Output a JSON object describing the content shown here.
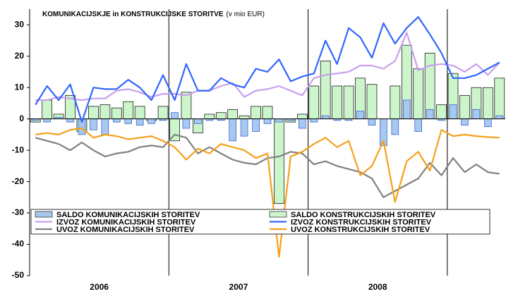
{
  "chart_data": {
    "type": "combo",
    "title": "KOMUNIKACIJSKJE in KONSTRUKCIJSKE STORITVE",
    "title_unit": "(v mio EUR)",
    "categories": [
      null,
      null,
      null,
      null,
      null,
      null,
      null,
      null,
      null,
      null,
      null,
      null,
      null,
      null,
      null,
      null,
      null,
      null,
      null,
      null,
      null,
      null,
      null,
      null,
      null,
      null,
      null,
      null,
      null,
      null,
      null,
      null,
      null,
      null,
      null,
      null,
      null,
      null,
      null,
      null,
      null
    ],
    "year_labels": [
      "2006",
      "2007",
      "2008"
    ],
    "ylim": [
      -50,
      35
    ],
    "yticks": [
      -50,
      -40,
      -30,
      -20,
      -10,
      0,
      10,
      20,
      30
    ],
    "grid": false,
    "series": [
      {
        "name": "SALDO KONSTRUKCIJSKIH STORITEV",
        "kind": "bar",
        "color": "#ccf5cc",
        "values": [
          -1,
          6,
          1.5,
          7.5,
          -4,
          4,
          4.5,
          3.5,
          5.5,
          4,
          -0.5,
          4,
          -7,
          8.5,
          -4.5,
          1.5,
          2,
          3,
          1,
          4,
          4,
          -27,
          -1,
          1.5,
          10.5,
          18.5,
          10.5,
          10.5,
          13,
          11,
          0,
          10.5,
          23.5,
          16,
          21,
          4.5,
          14.5,
          7.5,
          10,
          10,
          13
        ]
      },
      {
        "name": "SALDO KOMUNIKACIJSKIH STORITEV",
        "kind": "bar",
        "color": "#a8c8f0",
        "values": [
          -0.5,
          -1,
          0.5,
          -1,
          -5,
          -3.5,
          -5,
          -1,
          -1.5,
          -2,
          -1.5,
          -0.5,
          2,
          -3,
          -1.5,
          -0.5,
          -0.5,
          -7,
          -5.5,
          -4,
          -1.5,
          -1,
          -0.5,
          -3,
          -1,
          1,
          -0.5,
          -0.5,
          2.5,
          -2,
          -8.5,
          -5,
          6,
          -4,
          3,
          -0.5,
          4.5,
          -2,
          3,
          -2.5,
          1
        ]
      },
      {
        "name": "IZVOZ KOMUNIKACIJSKIH STORITEV",
        "kind": "line",
        "color": "#c8a0ee",
        "values": [
          6,
          6,
          7,
          6.5,
          6,
          6.5,
          6.5,
          9,
          9.5,
          8.5,
          7,
          8,
          8,
          7.5,
          9,
          9,
          10.5,
          11.5,
          7,
          9,
          9.5,
          10.5,
          9,
          7.5,
          13,
          14,
          14.5,
          15,
          17,
          17,
          16,
          18.5,
          27.5,
          15.5,
          17,
          17.5,
          17,
          15,
          17.5,
          14,
          18
        ]
      },
      {
        "name": "IZVOZ KONSTRUKCIJSKIH STORITEV",
        "kind": "line",
        "color": "#3366ff",
        "values": [
          4.5,
          10.5,
          6,
          11,
          -1,
          10,
          9.5,
          9.5,
          12.5,
          10,
          6,
          14,
          6,
          17.5,
          9,
          9,
          13,
          11,
          10,
          16,
          15,
          19,
          12,
          13.5,
          14.5,
          25,
          17.5,
          29,
          26,
          19.5,
          30.5,
          24,
          29,
          32.5,
          27,
          21,
          13,
          13,
          14,
          16,
          18
        ]
      },
      {
        "name": "UVOZ KOMUNIKACIJSKIH STORITEV",
        "kind": "line",
        "color": "#808080",
        "values": [
          -6,
          -7,
          -8,
          -10,
          -7.5,
          -10,
          -12,
          -11,
          -10.5,
          -9,
          -8.5,
          -9,
          -5,
          -6,
          -11,
          -9,
          -11,
          -13,
          -14,
          -14.5,
          -12.5,
          -12,
          -10.5,
          -11,
          -14.5,
          -13.5,
          -15,
          -16,
          -17,
          -19,
          -25,
          -23,
          -21,
          -19,
          -14,
          -18,
          -12.5,
          -17,
          -14.5,
          -17,
          -17.5
        ]
      },
      {
        "name": "UVOZ KONSTRUKCIJSKIH STORITEV",
        "kind": "line",
        "color": "#f5a01a",
        "values": [
          -5,
          -4.5,
          -5,
          -3.5,
          -3,
          -6,
          -5,
          -5.5,
          -6.5,
          -6,
          -5.5,
          -7,
          -9,
          -13,
          -9.5,
          -11,
          -8,
          -9,
          -10,
          -12.5,
          -11,
          -44,
          -12,
          -10.5,
          -8,
          -6,
          -9,
          -7,
          -18,
          -15,
          -7,
          -26.5,
          -13.5,
          -10.5,
          -16.5,
          -3.5,
          -5.5,
          -5,
          -5.5,
          -5.8,
          -6
        ]
      }
    ]
  }
}
